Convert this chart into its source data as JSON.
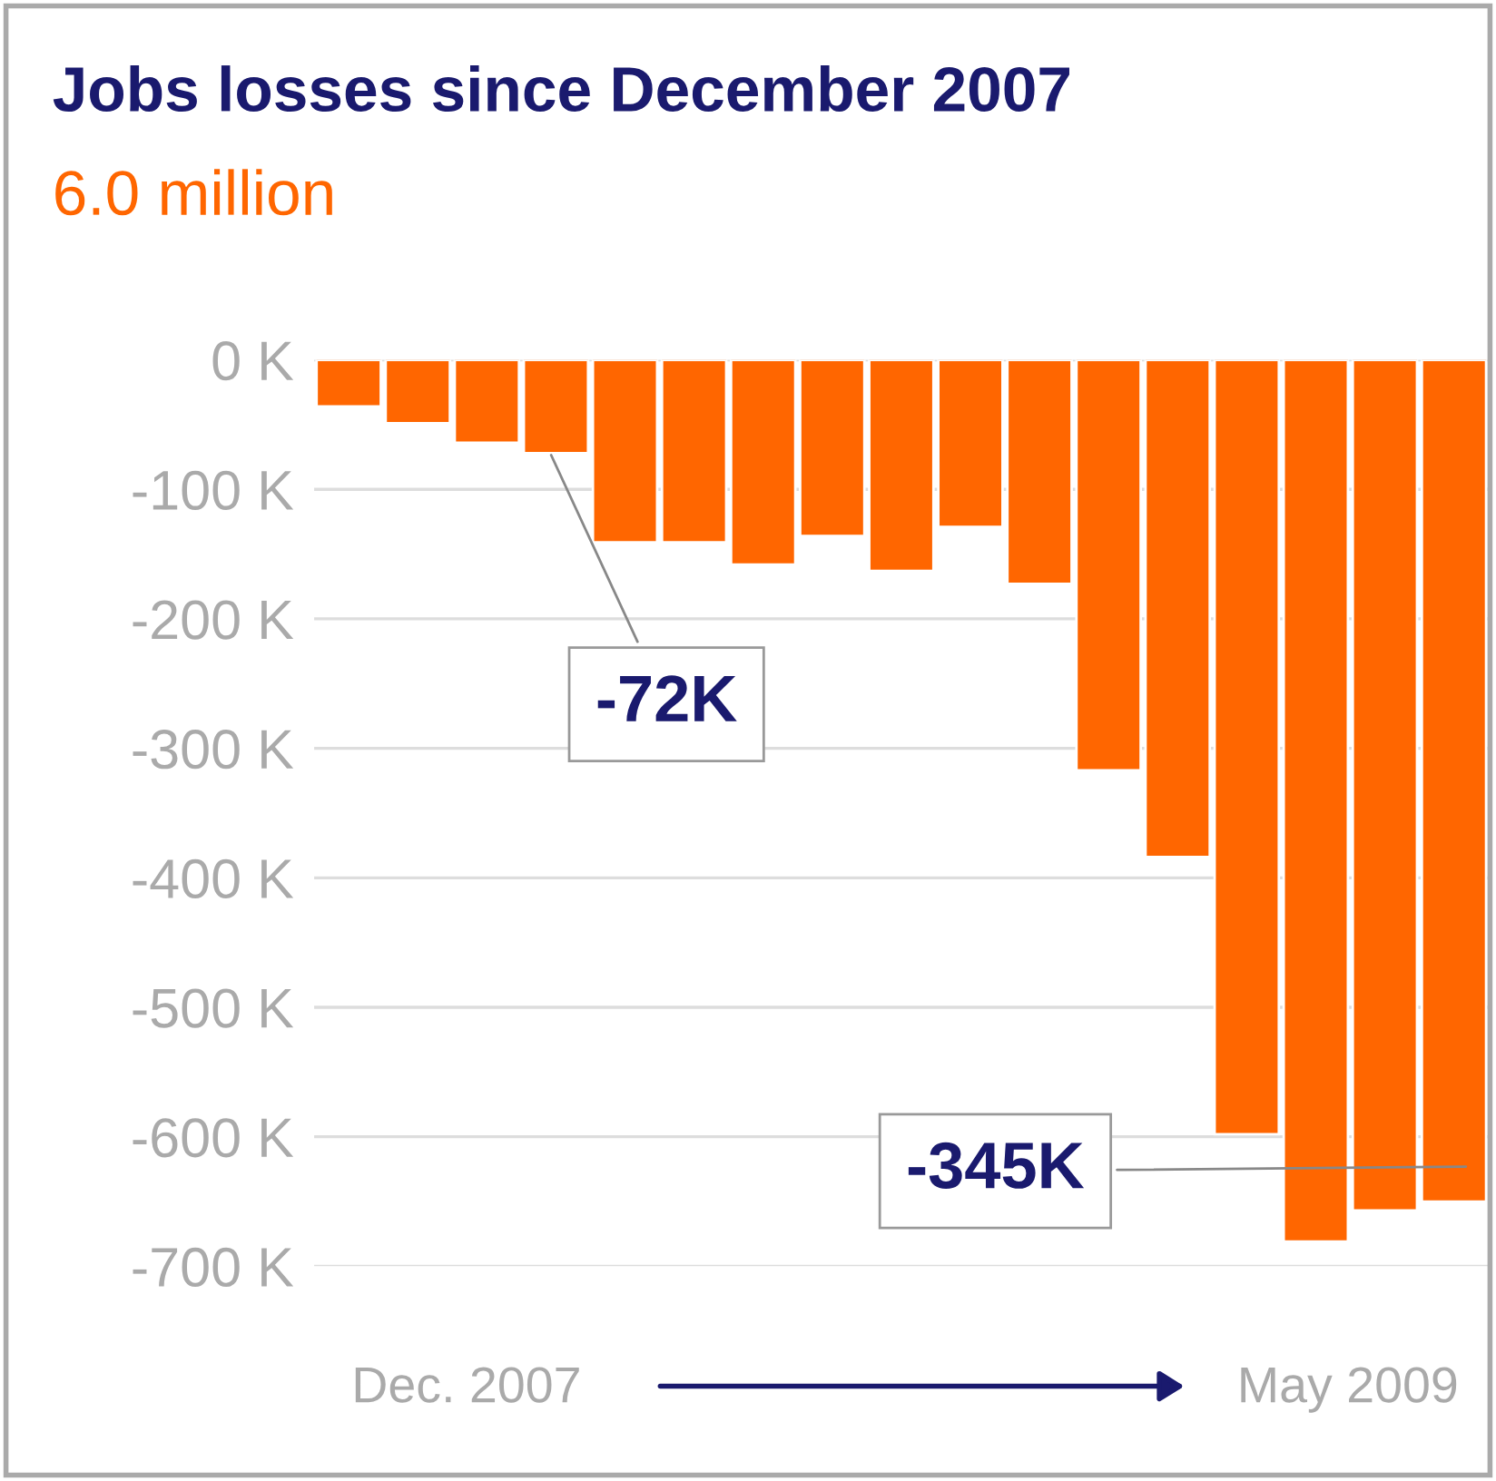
{
  "chart_data": {
    "type": "bar",
    "title": "Jobs losses since December 2007",
    "subtitle": "6.0 million",
    "categories": [
      null,
      null,
      null,
      null,
      null,
      null,
      null,
      null,
      null,
      null,
      null,
      null,
      null,
      null,
      null,
      null,
      null
    ],
    "values": [
      -36,
      -49,
      -64,
      -72,
      -141,
      -141,
      -158,
      -136,
      -163,
      -129,
      -173,
      -317,
      -384,
      -598,
      -681,
      -657,
      -650
    ],
    "color": "#ff6600",
    "ylim": [
      -700,
      0
    ],
    "yticks": [
      {
        "value": 0,
        "label": "0 K"
      },
      {
        "value": -100,
        "label": "-100 K"
      },
      {
        "value": -200,
        "label": "-200 K"
      },
      {
        "value": -300,
        "label": "-300 K"
      },
      {
        "value": -400,
        "label": "-400 K"
      },
      {
        "value": -500,
        "label": "-500 K"
      },
      {
        "value": -600,
        "label": "-600 K"
      },
      {
        "value": -700,
        "label": "-700 K"
      }
    ],
    "grid": "y",
    "annotations": [
      "-72K",
      "-345K",
      "Dec. 2007",
      "May 2009"
    ]
  }
}
